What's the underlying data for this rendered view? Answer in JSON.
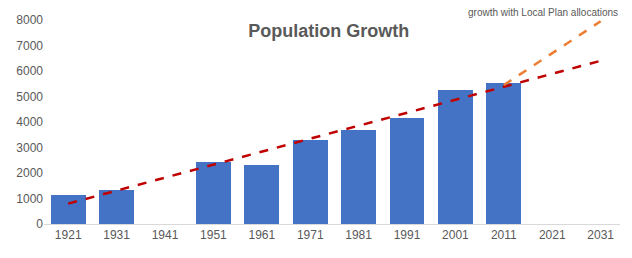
{
  "chart_data": {
    "type": "bar",
    "title": "Population Growth",
    "xlim": [
      1916,
      2035
    ],
    "xticks": [
      1921,
      1931,
      1941,
      1951,
      1961,
      1971,
      1981,
      1991,
      2001,
      2011,
      2021,
      2031
    ],
    "ylim": [
      0,
      8000
    ],
    "yticks": [
      0,
      1000,
      2000,
      3000,
      4000,
      5000,
      6000,
      7000,
      8000
    ],
    "grid": false,
    "series": [
      {
        "type": "bar",
        "color": "#4472C4",
        "x": [
          1921,
          1931,
          1941,
          1951,
          1961,
          1971,
          1981,
          1991,
          2001,
          2011,
          2021,
          2031
        ],
        "values": [
          1130,
          1320,
          null,
          2430,
          2300,
          3300,
          3680,
          4150,
          5270,
          5520,
          null,
          null
        ]
      },
      {
        "type": "line",
        "color": "#C00000",
        "line_style": "dash",
        "x": [
          1921,
          2031
        ],
        "values": [
          800,
          6400
        ]
      },
      {
        "type": "line",
        "name": "growth with Local Plan allocations",
        "color": "#ED7D31",
        "line_style": "dash",
        "x": [
          2011,
          2031
        ],
        "values": [
          5450,
          7950
        ]
      }
    ]
  }
}
